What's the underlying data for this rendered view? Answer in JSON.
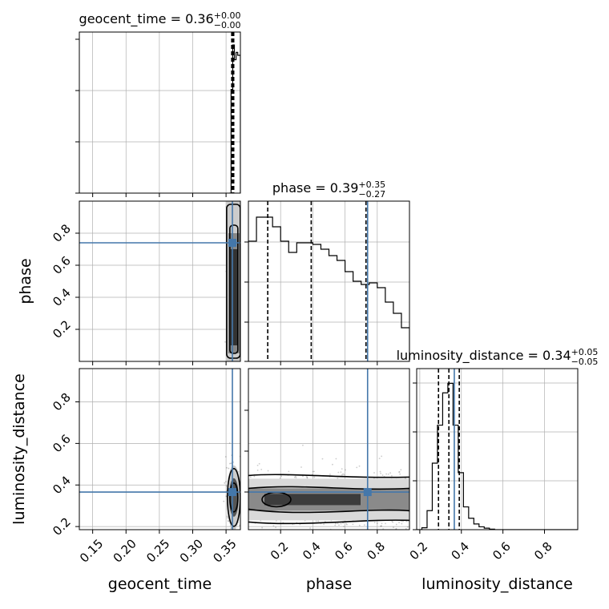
{
  "chart_data": {
    "type": "corner",
    "parameters": [
      "geocent_time",
      "phase",
      "luminosity_distance"
    ],
    "colors": {
      "truth": "#4477aa",
      "contour": "#000000",
      "grid": "#b0b0b0",
      "histogram": "#000000",
      "quantile": "#000000"
    },
    "titles": [
      {
        "name": "geocent_time",
        "median": "0.36",
        "plus": "+0.00",
        "minus": "−0.00"
      },
      {
        "name": "phase",
        "median": "0.39",
        "plus": "+0.35",
        "minus": "−0.27"
      },
      {
        "name": "luminosity_distance",
        "median": "0.34",
        "plus": "+0.05",
        "minus": "−0.05"
      }
    ],
    "axis_labels": {
      "x": [
        "geocent_time",
        "phase",
        "luminosity_distance"
      ],
      "y": [
        "phase",
        "luminosity_distance"
      ]
    },
    "ranges": {
      "geocent_time": [
        0.13,
        0.3715
      ],
      "phase": [
        0.0,
        1.0
      ],
      "luminosity_distance": [
        0.185,
        0.96
      ]
    },
    "ticks": {
      "geocent_time": [
        "0.15",
        "0.20",
        "0.25",
        "0.30",
        "0.35"
      ],
      "phase": [
        "0.2",
        "0.4",
        "0.6",
        "0.8"
      ],
      "luminosity_distance": [
        "0.2",
        "0.4",
        "0.6",
        "0.8"
      ]
    },
    "truths": {
      "geocent_time": 0.3595,
      "phase": 0.74,
      "luminosity_distance": 0.366
    },
    "quantiles": {
      "geocent_time": [
        0.3585,
        0.36,
        0.3615
      ],
      "phase": [
        0.12,
        0.39,
        0.73
      ],
      "luminosity_distance": [
        0.29,
        0.34,
        0.39
      ]
    },
    "hist_1d": {
      "geocent_time": {
        "edges": [
          0.355,
          0.3575,
          0.36,
          0.3625,
          0.365,
          0.3675,
          0.37,
          0.3715
        ],
        "values": [
          0.0,
          0.7,
          1.0,
          0.9,
          0.95,
          0.93,
          0.93
        ]
      },
      "phase": {
        "edges": [
          0.0,
          0.05,
          0.1,
          0.15,
          0.2,
          0.25,
          0.3,
          0.35,
          0.4,
          0.45,
          0.5,
          0.55,
          0.6,
          0.65,
          0.7,
          0.75,
          0.8,
          0.85,
          0.9,
          0.95,
          1.0
        ],
        "values": [
          0.75,
          0.9,
          0.9,
          0.84,
          0.75,
          0.68,
          0.74,
          0.74,
          0.73,
          0.7,
          0.66,
          0.63,
          0.56,
          0.5,
          0.48,
          0.49,
          0.46,
          0.37,
          0.3,
          0.21
        ]
      },
      "luminosity_distance": {
        "edges": [
          0.185,
          0.21,
          0.235,
          0.26,
          0.285,
          0.31,
          0.335,
          0.36,
          0.385,
          0.41,
          0.435,
          0.46,
          0.485,
          0.51,
          0.535,
          0.56,
          0.96
        ],
        "values": [
          0.0,
          0.01,
          0.1,
          0.35,
          0.55,
          0.72,
          0.77,
          0.55,
          0.3,
          0.12,
          0.06,
          0.03,
          0.015,
          0.008,
          0.003,
          0.0
        ]
      }
    },
    "grid": true
  }
}
